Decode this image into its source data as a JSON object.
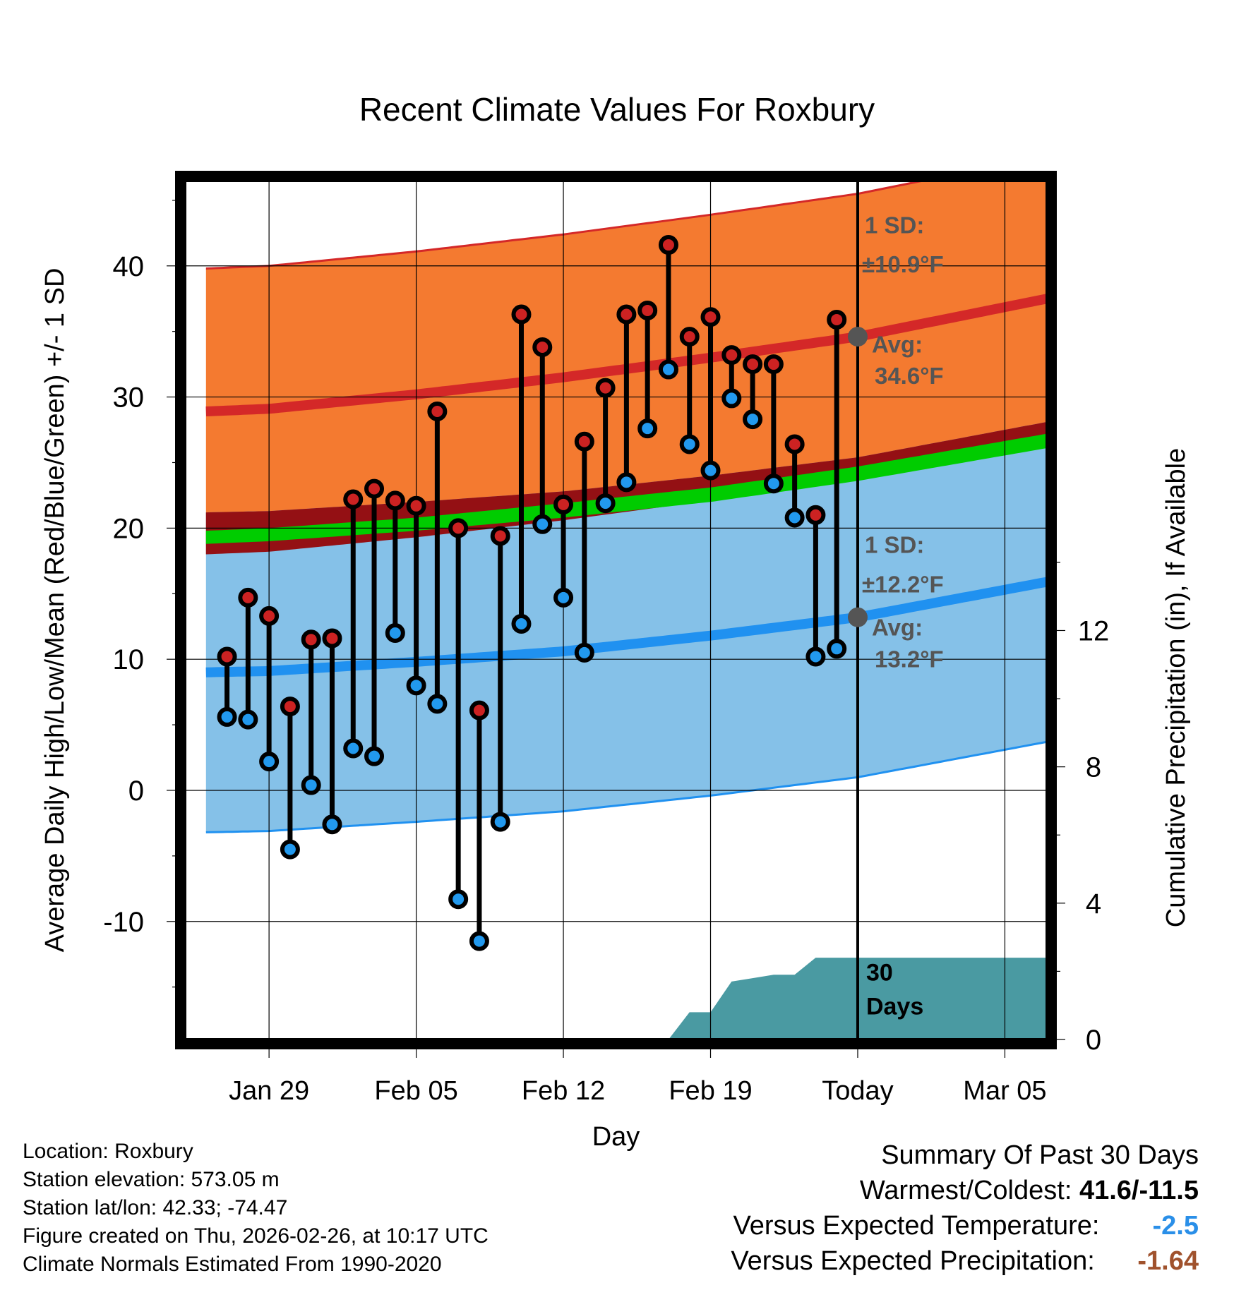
{
  "chart_data": {
    "type": "line",
    "title": "Recent Climate Values For Roxbury",
    "xlabel": "Day",
    "ylabel_left": "Average Daily High/Low/Mean (Red/Blue/Green) +/- 1 SD",
    "ylabel_right": "Cumulative Precipitation (in), If Available",
    "xlim_days": [
      -32,
      9
    ],
    "ylim_left": [
      -19,
      46.5
    ],
    "ylim_right": [
      0,
      25.2
    ],
    "x_ticks": [
      {
        "day": -28,
        "label": "Jan 29"
      },
      {
        "day": -21,
        "label": "Feb 05"
      },
      {
        "day": -14,
        "label": "Feb 12"
      },
      {
        "day": -7,
        "label": "Feb 19"
      },
      {
        "day": 0,
        "label": "Today"
      },
      {
        "day": 7,
        "label": "Mar 05"
      }
    ],
    "y_ticks_left": [
      40,
      30,
      20,
      10,
      0,
      -10
    ],
    "y_ticks_right": [
      12,
      8,
      4,
      0
    ],
    "normals": {
      "high_mean": {
        "days": [
          -31,
          -28,
          -21,
          -14,
          -7,
          0,
          9
        ],
        "values": [
          28.9,
          29.1,
          30.2,
          31.5,
          33.0,
          34.6,
          37.5
        ]
      },
      "high_sd": 10.9,
      "low_mean": {
        "days": [
          -31,
          -28,
          -21,
          -14,
          -7,
          0,
          9
        ],
        "values": [
          9.0,
          9.1,
          9.8,
          10.6,
          11.8,
          13.2,
          15.9
        ]
      },
      "low_sd": 12.2,
      "mean_band": {
        "days": [
          -31,
          -28,
          -21,
          -14,
          -7,
          0,
          9
        ],
        "lower": [
          18.8,
          19.0,
          19.8,
          20.8,
          22.0,
          23.6,
          26.1
        ],
        "upper": [
          19.8,
          20.0,
          20.8,
          21.9,
          23.1,
          24.7,
          27.2
        ]
      }
    },
    "series": [
      {
        "name": "Daily High",
        "color": "#cc2222",
        "days": [
          -30,
          -29,
          -28,
          -27,
          -26,
          -25,
          -24,
          -23,
          -22,
          -21,
          -20,
          -19,
          -18,
          -17,
          -16,
          -15,
          -14,
          -13,
          -12,
          -11,
          -10,
          -9,
          -8,
          -7,
          -6,
          -5,
          -4,
          -3,
          -2,
          -1
        ],
        "values": [
          10.2,
          14.7,
          13.3,
          6.4,
          11.5,
          11.6,
          22.2,
          23.0,
          22.1,
          21.7,
          28.9,
          20.0,
          6.1,
          19.4,
          36.3,
          33.8,
          21.8,
          26.6,
          30.7,
          36.3,
          36.6,
          41.6,
          34.6,
          36.1,
          33.2,
          32.5,
          32.5,
          26.4,
          21.0,
          35.9
        ]
      },
      {
        "name": "Daily Low",
        "color": "#2299ee",
        "days": [
          -30,
          -29,
          -28,
          -27,
          -26,
          -25,
          -24,
          -23,
          -22,
          -21,
          -20,
          -19,
          -18,
          -17,
          -16,
          -15,
          -14,
          -13,
          -12,
          -11,
          -10,
          -9,
          -8,
          -7,
          -6,
          -5,
          -4,
          -3,
          -2,
          -1
        ],
        "values": [
          5.6,
          5.4,
          2.2,
          -4.5,
          0.4,
          -2.6,
          3.2,
          2.6,
          12.0,
          8.0,
          6.6,
          -8.3,
          -11.5,
          -2.4,
          12.7,
          20.3,
          14.7,
          10.5,
          21.9,
          23.5,
          27.6,
          32.1,
          26.4,
          24.4,
          29.9,
          28.3,
          23.4,
          20.8,
          10.2,
          10.8
        ]
      },
      {
        "name": "Cumulative Precipitation",
        "color": "#4a9aa2",
        "days": [
          -9,
          -8,
          -7,
          -6,
          -5,
          -4,
          -3,
          -2,
          -1,
          0,
          9
        ],
        "values": [
          0.0,
          0.8,
          0.8,
          1.7,
          1.8,
          1.9,
          1.9,
          2.4,
          2.4,
          2.4,
          2.4
        ]
      }
    ],
    "annotations": {
      "high_sd_label": "1 SD:",
      "high_sd_value": "±10.9°F",
      "high_avg_label": "Avg:",
      "high_avg_value": "34.6°F",
      "low_sd_label": "1 SD:",
      "low_sd_value": "±12.2°F",
      "low_avg_label": "Avg:",
      "low_avg_value": "13.2°F",
      "precip_window_number": "30",
      "precip_window_unit": "Days"
    },
    "colors": {
      "high_band": "#f47a30",
      "high_line": "#d42828",
      "overlap_band": "#941014",
      "low_band": "#85c1e8",
      "low_line": "#2091f0",
      "mean_band": "#00cc00",
      "precip_fill": "#4a9aa2",
      "avg_marker": "#555555",
      "annotation_text": "#555555"
    }
  },
  "footer": {
    "location": "Location: Roxbury",
    "elevation": "Station elevation: 573.05 m",
    "latlon": "Station lat/lon: 42.33; -74.47",
    "created": "Figure created on Thu, 2026-02-26, at 10:17 UTC",
    "normals": "Climate Normals Estimated From 1990-2020"
  },
  "summary": {
    "title": "Summary Of Past 30 Days",
    "warm_cold_label": "Warmest/Coldest:",
    "warm_cold_value": "41.6/-11.5",
    "temp_label": "Versus Expected Temperature:",
    "temp_value": "-2.5",
    "temp_color": "#2a8fe8",
    "precip_label": "Versus Expected Precipitation:",
    "precip_value": "-1.64",
    "precip_color": "#a0522d"
  }
}
